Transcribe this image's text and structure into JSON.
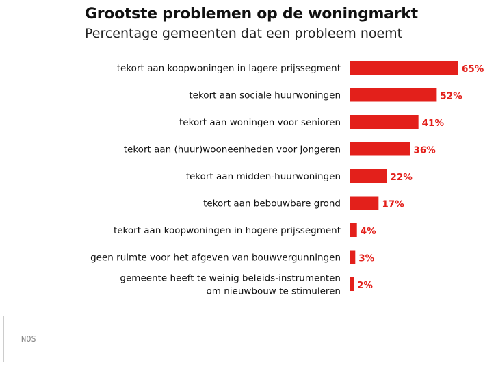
{
  "chart_data": {
    "type": "bar",
    "orientation": "horizontal",
    "title": "Grootste problemen op de woningmarkt",
    "subtitle": "Percentage gemeenten dat een probleem noemt",
    "categories": [
      [
        "tekort aan koopwoningen in lagere prijssegment"
      ],
      [
        "tekort aan sociale huurwoningen"
      ],
      [
        "tekort aan woningen voor senioren"
      ],
      [
        "tekort aan (huur)wooneenheden voor jongeren"
      ],
      [
        "tekort aan midden-huurwoningen"
      ],
      [
        "tekort aan bebouwbare grond"
      ],
      [
        "tekort aan koopwoningen in hogere prijssegment"
      ],
      [
        "geen ruimte voor het afgeven van bouwvergunningen"
      ],
      [
        "gemeente heeft te weinig beleids-instrumenten",
        "om nieuwbouw te stimuleren"
      ]
    ],
    "values": [
      65,
      52,
      41,
      36,
      22,
      17,
      4,
      3,
      2
    ],
    "value_labels": [
      "65%",
      "52%",
      "41%",
      "36%",
      "22%",
      "17%",
      "4%",
      "3%",
      "2%"
    ],
    "xlim": [
      0,
      65
    ],
    "color": "#e3201b",
    "source": "NOS"
  }
}
